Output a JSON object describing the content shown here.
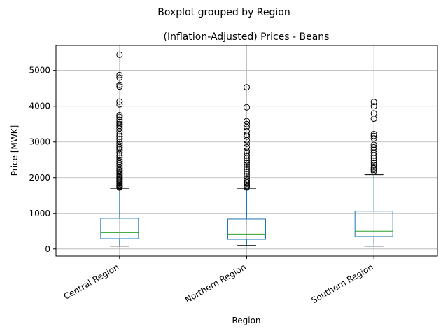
{
  "chart_data": {
    "type": "boxplot",
    "suptitle": "Boxplot grouped by Region",
    "title": "(Inflation-Adjusted) Prices - Beans",
    "xlabel": "Region",
    "ylabel": "Price [MWK]",
    "ylim": [
      -200,
      5700
    ],
    "yticks": [
      0,
      1000,
      2000,
      3000,
      4000,
      5000
    ],
    "grid": true,
    "categories": [
      "Central Region",
      "Northern Region",
      "Southern Region"
    ],
    "boxes": [
      {
        "category": "Central Region",
        "whisker_low": 80,
        "q1": 290,
        "median": 460,
        "q3": 860,
        "whisker_high": 1700,
        "outliers": [
          1720,
          1740,
          1760,
          1780,
          1800,
          1830,
          1860,
          1890,
          1920,
          1950,
          1980,
          2010,
          2040,
          2080,
          2120,
          2160,
          2200,
          2250,
          2300,
          2350,
          2400,
          2450,
          2500,
          2560,
          2620,
          2700,
          2760,
          2800,
          2850,
          2900,
          2950,
          3000,
          3080,
          3150,
          3220,
          3300,
          3380,
          3450,
          3500,
          3560,
          3620,
          3700,
          3750,
          4050,
          4130,
          4550,
          4600,
          4800,
          4870,
          5440
        ]
      },
      {
        "category": "Northern Region",
        "whisker_low": 100,
        "q1": 270,
        "median": 420,
        "q3": 840,
        "whisker_high": 1700,
        "outliers": [
          1720,
          1750,
          1790,
          1830,
          1870,
          1920,
          1980,
          2040,
          2100,
          2170,
          2240,
          2300,
          2360,
          2420,
          2480,
          2550,
          2620,
          2700,
          2750,
          2850,
          2950,
          3050,
          3150,
          3200,
          3300,
          3420,
          3500,
          3580,
          3970,
          4530
        ]
      },
      {
        "category": "Southern Region",
        "whisker_low": 80,
        "q1": 350,
        "median": 500,
        "q3": 1060,
        "whisker_high": 2080,
        "outliers": [
          2180,
          2220,
          2260,
          2300,
          2360,
          2420,
          2480,
          2550,
          2620,
          2700,
          2780,
          2850,
          2920,
          3100,
          3170,
          3220,
          3650,
          3800,
          4000,
          4120
        ]
      }
    ],
    "colors": {
      "box": "#1f77b4",
      "median": "#2ca02c",
      "grid": "#b0b0b0",
      "flier": "#000000"
    }
  }
}
